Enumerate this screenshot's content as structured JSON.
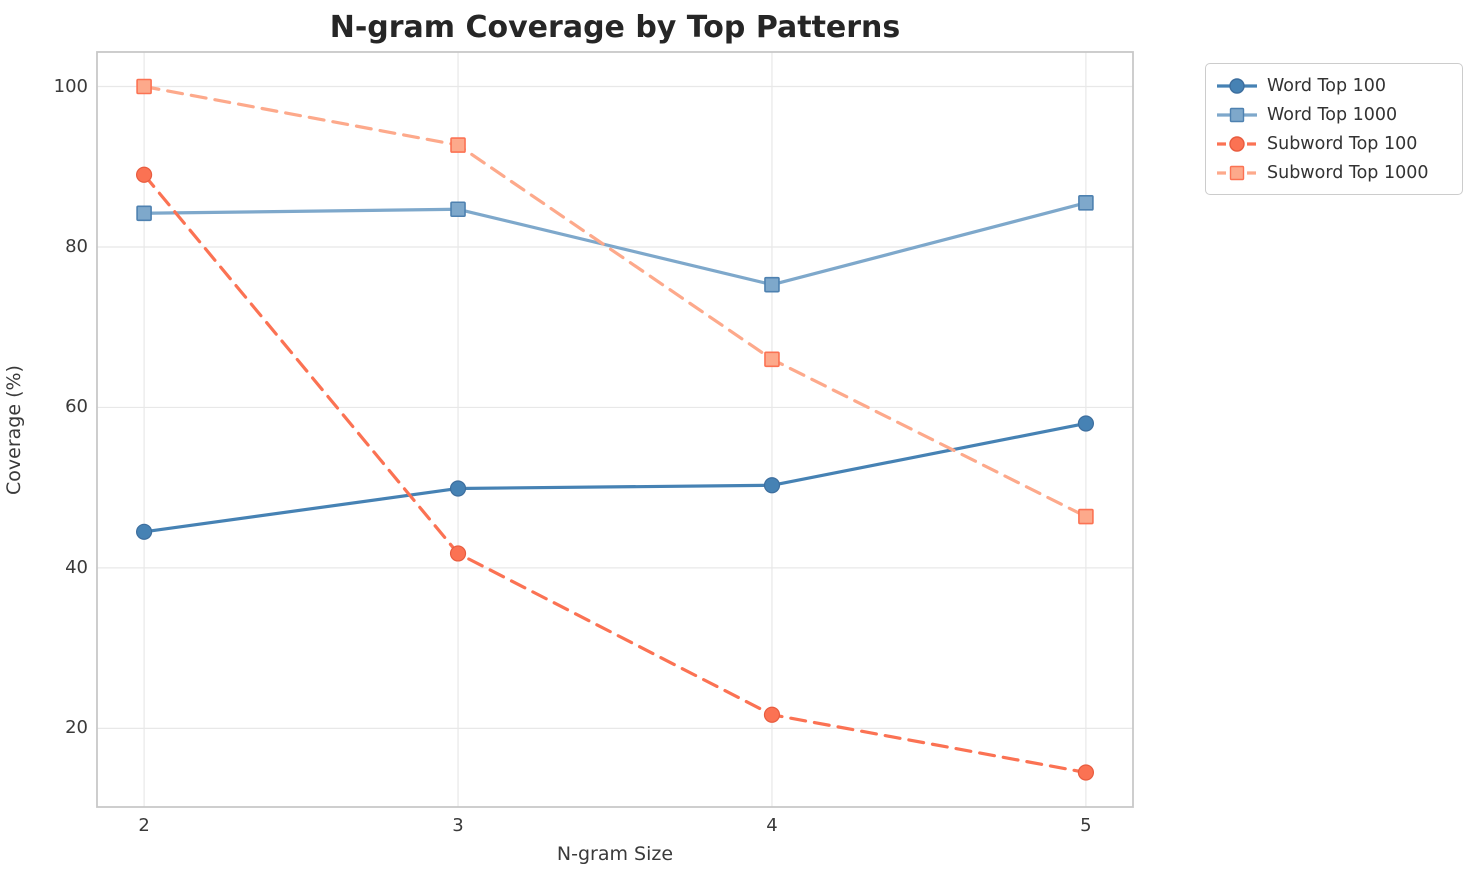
{
  "title": "N-gram Coverage by Top Patterns",
  "chart_data": {
    "type": "line",
    "title": "N-gram Coverage by Top Patterns",
    "xlabel": "N-gram Size",
    "ylabel": "Coverage (%)",
    "x": [
      2,
      3,
      4,
      5
    ],
    "xticks": [
      2,
      3,
      4,
      5
    ],
    "yticks": [
      20,
      40,
      60,
      80,
      100
    ],
    "xlim": [
      1.85,
      5.15
    ],
    "ylim": [
      10.2,
      104.3
    ],
    "grid": true,
    "grid_color": "#e8e8e8",
    "frame_color": "#c8c8c8",
    "background_color": "#ffffff",
    "title_color": "#262626",
    "text_color": "#3a3a3a",
    "legend_position": "upper right outside plot",
    "series": [
      {
        "name": "Word Top 100",
        "values": [
          44.5,
          49.9,
          50.3,
          58.0
        ],
        "color": "#4682B4",
        "edge_color": "#3D6E9E",
        "linestyle": "solid",
        "marker": "circle"
      },
      {
        "name": "Word Top 1000",
        "values": [
          84.2,
          84.7,
          75.3,
          85.5
        ],
        "color": "#7EA8CB",
        "edge_color": "#4E81B0",
        "linestyle": "solid",
        "marker": "square"
      },
      {
        "name": "Subword Top 100",
        "values": [
          89.0,
          41.8,
          21.7,
          14.5
        ],
        "color": "#FB7253",
        "edge_color": "#E85C3F",
        "linestyle": "dashed",
        "marker": "circle"
      },
      {
        "name": "Subword Top 1000",
        "values": [
          100.0,
          92.7,
          66.0,
          46.4
        ],
        "color": "#FDA98B",
        "edge_color": "#FB7253",
        "linestyle": "dashed",
        "marker": "square"
      }
    ]
  }
}
